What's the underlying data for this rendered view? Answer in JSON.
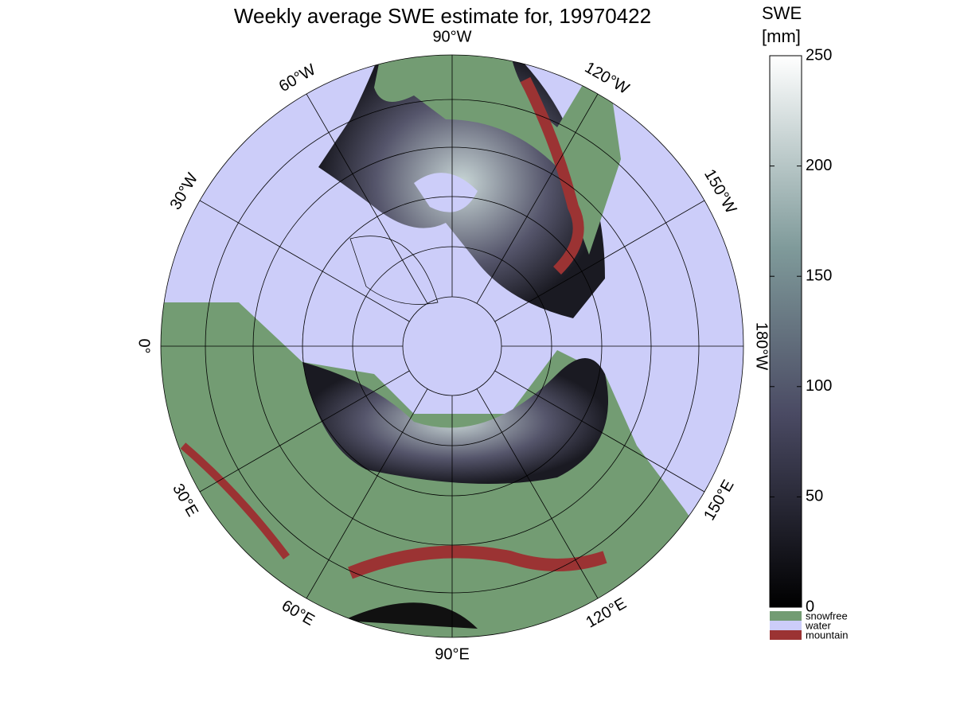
{
  "title": "Weekly average SWE estimate for, 19970422",
  "map": {
    "lon_labels": [
      "0°",
      "30°W",
      "60°W",
      "90°W",
      "120°W",
      "150°W",
      "180°W",
      "150°E",
      "120°E",
      "90°E",
      "60°E",
      "30°E"
    ]
  },
  "colorbar": {
    "label": [
      "SWE",
      "[mm]"
    ],
    "lim": [
      0,
      250
    ],
    "ticks": [
      0,
      50,
      100,
      150,
      200,
      250
    ],
    "categories": [
      {
        "name": "snowfree",
        "color": "#739c73"
      },
      {
        "name": "water",
        "color": "#cccdf9"
      },
      {
        "name": "mountain",
        "color": "#9b3333"
      }
    ]
  }
}
